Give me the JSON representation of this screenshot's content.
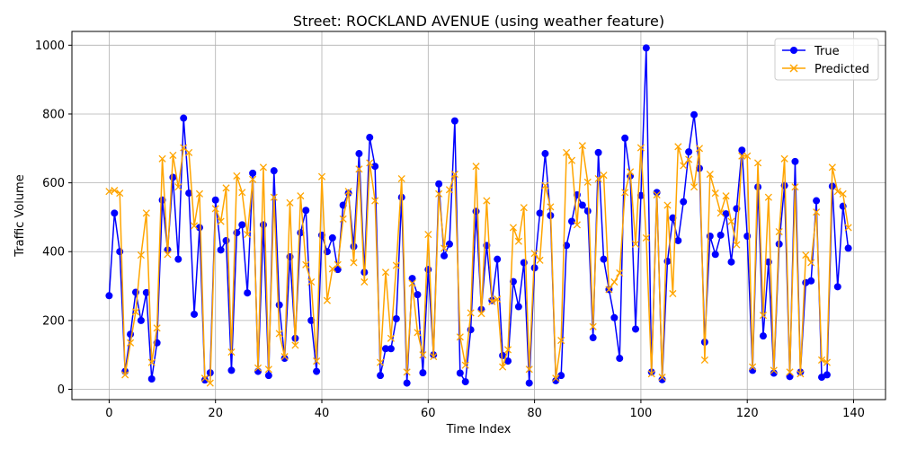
{
  "chart_data": {
    "type": "line",
    "title": "Street: ROCKLAND AVENUE (using weather feature)",
    "xlabel": "Time Index",
    "ylabel": "Traffic Volume",
    "xlim": [
      -7,
      146
    ],
    "ylim": [
      -30,
      1040
    ],
    "xticks": [
      0,
      20,
      40,
      60,
      80,
      100,
      120,
      140
    ],
    "yticks": [
      0,
      200,
      400,
      600,
      800,
      1000
    ],
    "grid": true,
    "legend_position": "top-right",
    "series": [
      {
        "name": "True",
        "color": "#0000ff",
        "marker": "circle",
        "values": [
          272,
          512,
          400,
          52,
          160,
          282,
          200,
          281,
          30,
          135,
          550,
          405,
          616,
          378,
          788,
          570,
          218,
          470,
          27,
          48,
          550,
          405,
          432,
          55,
          455,
          478,
          280,
          628,
          52,
          478,
          40,
          635,
          245,
          90,
          385,
          148,
          455,
          520,
          200,
          52,
          448,
          400,
          440,
          348,
          535,
          570,
          415,
          685,
          340,
          732,
          648,
          40,
          118,
          118,
          205,
          558,
          18,
          322,
          275,
          48,
          348,
          100,
          597,
          388,
          422,
          780,
          47,
          22,
          173,
          517,
          232,
          418,
          258,
          378,
          98,
          82,
          313,
          240,
          368,
          18,
          353,
          512,
          685,
          505,
          25,
          40,
          418,
          488,
          565,
          535,
          518,
          150,
          688,
          378,
          290,
          208,
          90,
          730,
          620,
          175,
          563,
          992,
          50,
          572,
          28,
          372,
          498,
          432,
          545,
          690,
          798,
          642,
          137,
          445,
          392,
          448,
          510,
          370,
          525,
          695,
          445,
          55,
          588,
          155,
          370,
          47,
          422,
          592,
          37,
          662,
          50,
          310,
          315,
          548,
          35,
          42,
          590,
          298,
          532,
          410
        ]
      },
      {
        "name": "Predicted",
        "color": "#ffa500",
        "marker": "x",
        "values": [
          575,
          578,
          570,
          42,
          135,
          225,
          390,
          512,
          78,
          178,
          670,
          392,
          680,
          588,
          702,
          688,
          475,
          568,
          32,
          18,
          525,
          488,
          585,
          108,
          620,
          572,
          450,
          610,
          62,
          645,
          58,
          558,
          162,
          95,
          542,
          128,
          562,
          362,
          312,
          82,
          618,
          258,
          350,
          362,
          495,
          575,
          368,
          640,
          312,
          658,
          548,
          78,
          340,
          148,
          360,
          612,
          50,
          308,
          165,
          100,
          450,
          95,
          568,
          410,
          580,
          625,
          152,
          70,
          222,
          648,
          220,
          548,
          255,
          262,
          65,
          115,
          470,
          430,
          528,
          58,
          395,
          375,
          592,
          530,
          32,
          142,
          688,
          665,
          478,
          708,
          602,
          182,
          612,
          622,
          290,
          312,
          338,
          572,
          632,
          422,
          702,
          440,
          45,
          565,
          35,
          535,
          278,
          705,
          650,
          668,
          588,
          700,
          85,
          625,
          570,
          512,
          562,
          488,
          420,
          678,
          678,
          65,
          658,
          215,
          558,
          55,
          458,
          670,
          50,
          588,
          45,
          390,
          368,
          515,
          85,
          78,
          645,
          575,
          568,
          470
        ]
      }
    ]
  }
}
